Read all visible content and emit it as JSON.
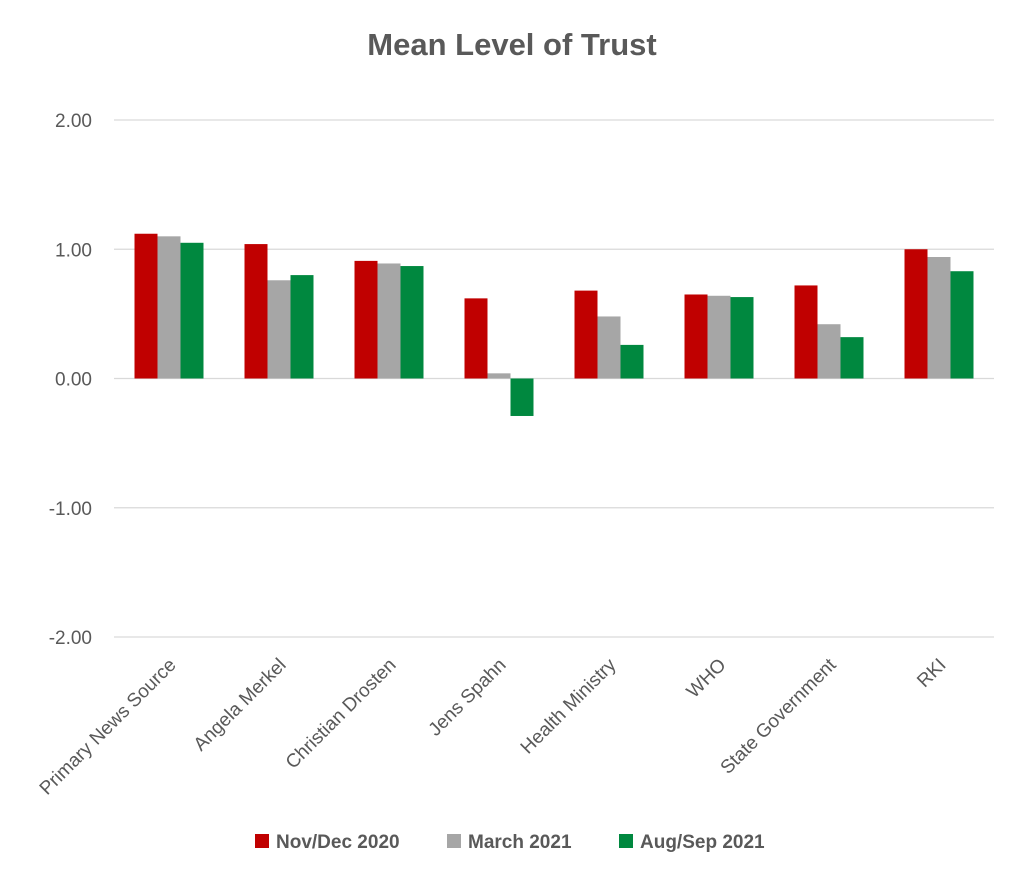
{
  "chart_data": {
    "type": "bar",
    "title": "Mean Level of Trust",
    "xlabel": "",
    "ylabel": "",
    "ylim": [
      -2.0,
      2.0
    ],
    "yticks": [
      "2.00",
      "1.00",
      "0.00",
      "-1.00",
      "-2.00"
    ],
    "ytick_values": [
      2.0,
      1.0,
      0.0,
      -1.0,
      -2.0
    ],
    "grid": true,
    "legend_position": "bottom",
    "categories": [
      "Primary News Source",
      "Angela Merkel",
      "Christian Drosten",
      "Jens Spahn",
      "Health Ministry",
      "WHO",
      "State Government",
      "RKI"
    ],
    "series": [
      {
        "name": "Nov/Dec 2020",
        "color": "#c00000",
        "values": [
          1.12,
          1.04,
          0.91,
          0.62,
          0.68,
          0.65,
          0.72,
          1.0
        ]
      },
      {
        "name": "March 2021",
        "color": "#a6a6a6",
        "values": [
          1.1,
          0.76,
          0.89,
          0.04,
          0.48,
          0.64,
          0.42,
          0.94
        ]
      },
      {
        "name": "Aug/Sep 2021",
        "color": "#00883f",
        "values": [
          1.05,
          0.8,
          0.87,
          -0.29,
          0.26,
          0.63,
          0.32,
          0.83
        ]
      }
    ]
  }
}
